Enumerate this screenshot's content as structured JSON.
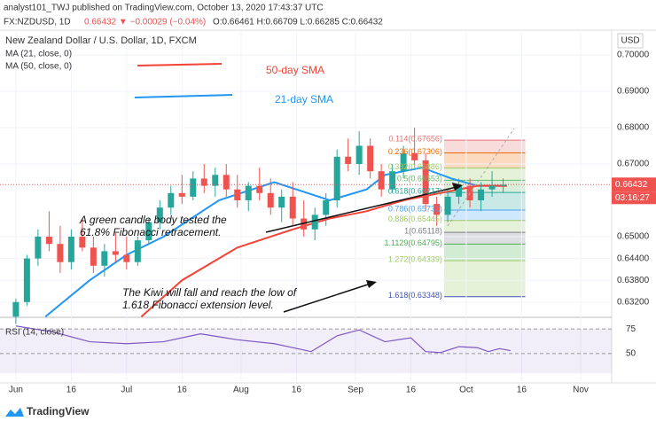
{
  "header": {
    "publisher": "analyst101_TWJ published on TradingView.com, October 13, 2020 17:43:37 UTC",
    "symbol": "FX:NZDUSD, 1D",
    "quote": "0.66432 ▼ −0.00029 (−0.04%)",
    "ohlc": "O:0.66461 H:0.66709 L:0.66285 C:0.66432"
  },
  "footer": {
    "brand": "TradingView"
  },
  "chart_data": {
    "type": "candlestick",
    "title": "New Zealand Dollar / U.S. Dollar, 1D, FXCM",
    "indicator_labels": [
      "MA (21, close, 0)",
      "MA (50, close, 0)"
    ],
    "currency": "USD",
    "countdown": "03:16:27",
    "last_price": 0.66432,
    "up_color": "#26a69a",
    "down_color": "#ef5350",
    "xlim": [
      -4.3,
      161.4
    ],
    "xticks": [
      {
        "value": 0,
        "label": "Jun"
      },
      {
        "value": 15,
        "label": "16"
      },
      {
        "value": 30,
        "label": "Jul"
      },
      {
        "value": 45,
        "label": "16"
      },
      {
        "value": 61,
        "label": "Aug"
      },
      {
        "value": 76,
        "label": "16"
      },
      {
        "value": 92,
        "label": "Sep"
      },
      {
        "value": 107,
        "label": "16"
      },
      {
        "value": 122,
        "label": "Oct"
      },
      {
        "value": 137,
        "label": "16"
      },
      {
        "value": 153,
        "label": "Nov"
      }
    ],
    "ylim": [
      0.62854,
      0.70634
    ],
    "yticks": [
      {
        "value": 0.7,
        "label": "0.70000"
      },
      {
        "value": 0.69,
        "label": "0.69000"
      },
      {
        "value": 0.68,
        "label": "0.68000"
      },
      {
        "value": 0.67,
        "label": "0.67000"
      },
      {
        "value": 0.65,
        "label": "0.65000"
      },
      {
        "value": 0.644,
        "label": "0.64400"
      },
      {
        "value": 0.638,
        "label": "0.63800"
      },
      {
        "value": 0.632,
        "label": "0.63200"
      }
    ],
    "x": [
      0,
      3,
      6,
      9,
      12,
      15,
      18,
      21,
      24,
      27,
      30,
      33,
      36,
      39,
      42,
      45,
      48,
      51,
      54,
      57,
      60,
      63,
      66,
      69,
      72,
      75,
      78,
      81,
      84,
      87,
      90,
      93,
      96,
      99,
      102,
      105,
      108,
      111,
      114,
      117,
      120,
      123,
      126,
      129,
      132
    ],
    "open": [
      0.628,
      0.632,
      0.644,
      0.65,
      0.648,
      0.643,
      0.65,
      0.647,
      0.642,
      0.646,
      0.645,
      0.643,
      0.649,
      0.654,
      0.658,
      0.662,
      0.661,
      0.666,
      0.664,
      0.667,
      0.663,
      0.66,
      0.664,
      0.662,
      0.658,
      0.661,
      0.655,
      0.652,
      0.656,
      0.66,
      0.672,
      0.67,
      0.675,
      0.668,
      0.663,
      0.668,
      0.673,
      0.671,
      0.659,
      0.656,
      0.661,
      0.664,
      0.66,
      0.663,
      0.664
    ],
    "high": [
      0.633,
      0.645,
      0.652,
      0.657,
      0.653,
      0.652,
      0.655,
      0.65,
      0.648,
      0.651,
      0.65,
      0.65,
      0.655,
      0.66,
      0.664,
      0.667,
      0.668,
      0.67,
      0.669,
      0.67,
      0.667,
      0.665,
      0.669,
      0.666,
      0.663,
      0.665,
      0.66,
      0.658,
      0.662,
      0.674,
      0.677,
      0.679,
      0.677,
      0.67,
      0.67,
      0.675,
      0.68,
      0.673,
      0.661,
      0.663,
      0.666,
      0.666,
      0.665,
      0.668,
      0.666
    ],
    "low": [
      0.626,
      0.631,
      0.642,
      0.646,
      0.64,
      0.641,
      0.646,
      0.64,
      0.639,
      0.643,
      0.641,
      0.642,
      0.648,
      0.652,
      0.656,
      0.659,
      0.66,
      0.662,
      0.661,
      0.661,
      0.658,
      0.657,
      0.66,
      0.656,
      0.654,
      0.653,
      0.65,
      0.649,
      0.653,
      0.658,
      0.668,
      0.667,
      0.666,
      0.661,
      0.662,
      0.666,
      0.669,
      0.657,
      0.653,
      0.654,
      0.659,
      0.658,
      0.657,
      0.661,
      0.662
    ],
    "close": [
      0.632,
      0.644,
      0.65,
      0.648,
      0.643,
      0.65,
      0.647,
      0.642,
      0.646,
      0.645,
      0.643,
      0.649,
      0.654,
      0.658,
      0.662,
      0.661,
      0.666,
      0.664,
      0.667,
      0.663,
      0.66,
      0.664,
      0.662,
      0.658,
      0.661,
      0.655,
      0.652,
      0.656,
      0.66,
      0.672,
      0.67,
      0.675,
      0.668,
      0.663,
      0.668,
      0.673,
      0.671,
      0.659,
      0.656,
      0.661,
      0.664,
      0.66,
      0.663,
      0.664,
      0.66432
    ],
    "series": [
      {
        "name": "21-day SMA",
        "color": "#2196f3",
        "x": [
          8,
          20,
          30,
          40,
          55,
          70,
          85,
          95,
          100,
          110,
          118,
          125,
          133
        ],
        "values": [
          0.628,
          0.638,
          0.645,
          0.65,
          0.66,
          0.665,
          0.66,
          0.663,
          0.667,
          0.669,
          0.666,
          0.664,
          0.664
        ]
      },
      {
        "name": "50-day SMA",
        "color": "#f44336",
        "x": [
          34,
          45,
          60,
          75,
          85,
          95,
          105,
          115,
          125,
          133
        ],
        "values": [
          0.628,
          0.638,
          0.647,
          0.652,
          0.655,
          0.657,
          0.66,
          0.662,
          0.664,
          0.664
        ]
      }
    ],
    "fib_x": [
      116,
      138
    ],
    "fib_levels": [
      {
        "label": "0.114(0.67656)",
        "value": 0.67656,
        "color": "#e57373"
      },
      {
        "label": "0.236(0.67306)",
        "value": 0.67306,
        "color": "#ef6c00"
      },
      {
        "label": "0.382(0.66886)",
        "value": 0.66886,
        "color": "#9ccc65"
      },
      {
        "label": "0.5(0.66553)",
        "value": 0.66553,
        "color": "#66bb6a"
      },
      {
        "label": "0.618(0.66217)",
        "value": 0.66217,
        "color": "#26a69a"
      },
      {
        "label": "0.786(0.65731)",
        "value": 0.65731,
        "color": "#42a5f5"
      },
      {
        "label": "0.886(0.65445)",
        "value": 0.65445,
        "color": "#9ccc65"
      },
      {
        "label": "1(0.65118)",
        "value": 0.65118,
        "color": "#787b86"
      },
      {
        "label": "1.1129(0.64795)",
        "value": 0.64795,
        "color": "#4caf50"
      },
      {
        "label": "1.272(0.64339)",
        "value": 0.64339,
        "color": "#9ccc65"
      },
      {
        "label": "1.618(0.63348)",
        "value": 0.63348,
        "color": "#3f51b5"
      }
    ],
    "annotations": [
      "50-day SMA",
      "21-day SMA",
      "A green candle body tested the",
      "61.8% Fibonacci retracement.",
      "The Kiwi will fall and reach the low of",
      "1.618 Fibonacci extension level."
    ],
    "rsi": {
      "label": "RSI (14, close)",
      "color": "#7e57c2",
      "ylim": [
        22,
        85
      ],
      "yticks": [
        75,
        50
      ],
      "x": [
        0,
        10,
        20,
        30,
        40,
        50,
        60,
        70,
        80,
        87,
        93,
        100,
        107,
        111,
        115,
        120,
        125,
        128,
        131,
        134
      ],
      "values": [
        78,
        72,
        62,
        60,
        62,
        70,
        64,
        60,
        52,
        68,
        74,
        62,
        66,
        52,
        51,
        57,
        56,
        52,
        55,
        53
      ]
    }
  }
}
